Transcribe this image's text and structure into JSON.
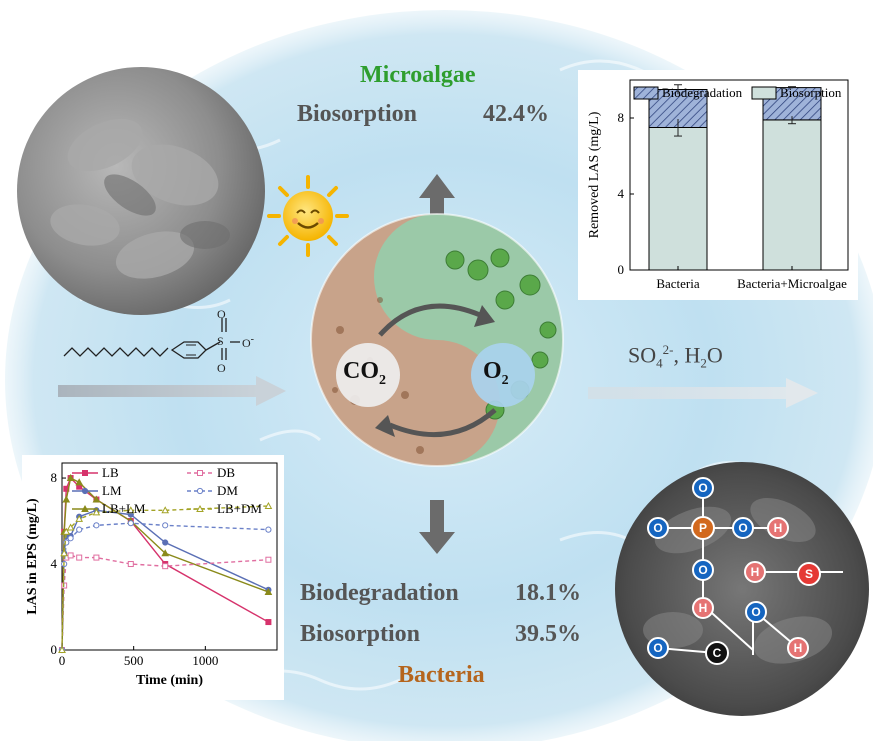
{
  "microalgae": {
    "title": "Microalgae",
    "biosorption_label": "Biosorption",
    "biosorption_value": "42.4%"
  },
  "bacteria": {
    "title": "Bacteria",
    "biodegradation_label": "Biodegradation",
    "biodegradation_value": "18.1%",
    "biosorption_label": "Biosorption",
    "biosorption_value": "39.5%"
  },
  "cycle": {
    "co2": "CO",
    "co2_sub": "2",
    "o2": "O",
    "o2_sub": "2"
  },
  "products": {
    "text": "SO",
    "sub": "4",
    "sup": "2-",
    "rest": ", H",
    "h_sub": "2",
    "o": "O"
  },
  "molecule": {
    "s": "S",
    "o_top": "O",
    "o_minus": "O",
    "minus": "-",
    "o_bottom": "O"
  },
  "surface_groups": {
    "o1": "O",
    "o2": "O",
    "o3": "O",
    "o4": "O",
    "o5": "O",
    "o6": "O",
    "p": "P",
    "s": "S",
    "c": "C",
    "h1": "H",
    "h2": "H",
    "h3": "H",
    "h4": "H"
  },
  "colors": {
    "microalgae_title": "#2e9e2e",
    "bacteria_title": "#b5651d",
    "o_node": "#1565c0",
    "h_node": "#e57373",
    "p_node": "#d2691e",
    "s_node": "#e53935",
    "c_node": "#111111"
  },
  "chart_data": [
    {
      "type": "bar",
      "stacked": true,
      "categories": [
        "Bacteria",
        "Bacteria+Microalgae"
      ],
      "series": [
        {
          "name": "Biosorption",
          "values": [
            7.5,
            7.9
          ],
          "errors": [
            0.45,
            0.2
          ]
        },
        {
          "name": "Biodegradation",
          "values": [
            2.0,
            1.7
          ],
          "errors": [
            0.25,
            0.05
          ]
        }
      ],
      "ylabel": "Removed LAS (mg/L)",
      "yticks": [
        "0",
        "4",
        "8"
      ],
      "ylim": [
        0,
        10
      ],
      "legend": "top"
    },
    {
      "type": "line",
      "xlabel": "Time (min)",
      "ylabel": "LAS in EPS (mg/L)",
      "xticks": [
        "0",
        "500",
        "1000"
      ],
      "yticks": [
        "0",
        "4",
        "8"
      ],
      "xlim": [
        0,
        1500
      ],
      "ylim": [
        0,
        8.7
      ],
      "legend": "top",
      "series": [
        {
          "name": "LB",
          "color": "#d6336c",
          "style": "solid",
          "marker": "square",
          "x": [
            0,
            15,
            30,
            60,
            120,
            240,
            480,
            720,
            1440
          ],
          "y": [
            0,
            5.5,
            7.5,
            8.0,
            7.6,
            7.0,
            6.0,
            4.0,
            1.3
          ]
        },
        {
          "name": "LM",
          "color": "#5a6fb5",
          "style": "solid",
          "marker": "circle",
          "x": [
            0,
            15,
            30,
            60,
            120,
            240,
            480,
            720,
            1440
          ],
          "y": [
            0,
            4.5,
            5.3,
            5.3,
            6.2,
            6.5,
            6.3,
            5.0,
            2.8
          ]
        },
        {
          "name": "LB+LM",
          "color": "#8a8a1a",
          "style": "solid",
          "marker": "triangle",
          "x": [
            0,
            15,
            30,
            60,
            120,
            240,
            480,
            720,
            1440
          ],
          "y": [
            0,
            5.5,
            7.0,
            8.0,
            7.8,
            7.0,
            6.0,
            4.5,
            2.7
          ]
        },
        {
          "name": "DB",
          "color": "#e06ea0",
          "style": "dashed",
          "marker": "square",
          "x": [
            0,
            15,
            30,
            60,
            120,
            240,
            480,
            720,
            1440
          ],
          "y": [
            0,
            3.0,
            4.3,
            4.4,
            4.3,
            4.3,
            4.0,
            3.9,
            4.2
          ]
        },
        {
          "name": "DM",
          "color": "#6a80c8",
          "style": "dashed",
          "marker": "circle",
          "x": [
            0,
            15,
            30,
            60,
            120,
            240,
            480,
            720,
            1440
          ],
          "y": [
            0,
            4.0,
            5.0,
            5.2,
            5.6,
            5.8,
            5.9,
            5.8,
            5.6
          ]
        },
        {
          "name": "LB+DM",
          "color": "#a3a326",
          "style": "dashed",
          "marker": "triangle",
          "x": [
            0,
            15,
            30,
            60,
            120,
            240,
            480,
            720,
            1440
          ],
          "y": [
            0,
            4.5,
            5.5,
            5.7,
            6.1,
            6.4,
            6.5,
            6.5,
            6.7
          ]
        }
      ]
    }
  ]
}
